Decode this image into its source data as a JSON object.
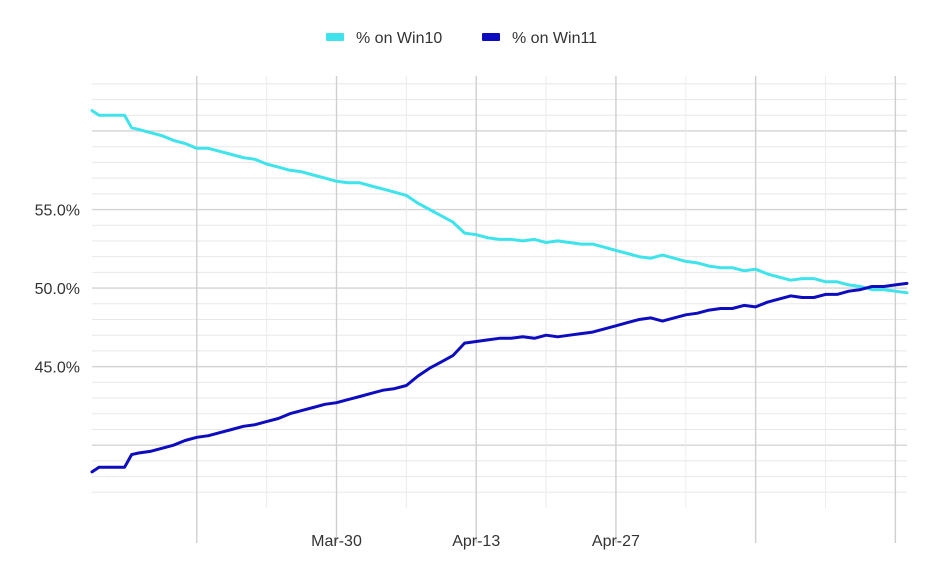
{
  "chart_data": {
    "type": "line",
    "title": "",
    "xlabel": "",
    "ylabel": "",
    "x_ticks": [
      "Mar-30",
      "Apr-13",
      "Apr-27"
    ],
    "y_ticks": [
      "45.0%",
      "50.0%",
      "55.0%"
    ],
    "ylim": [
      36.0,
      63.5
    ],
    "grid": true,
    "legend_position": "top",
    "series": [
      {
        "name": "% on Win10",
        "color": "#3ee3ec",
        "points": [
          [
            0,
            61.3
          ],
          [
            0.6,
            61.0
          ],
          [
            1.2,
            61.0
          ],
          [
            2.0,
            61.0
          ],
          [
            2.8,
            61.0
          ],
          [
            3.4,
            60.2
          ],
          [
            4.0,
            60.1
          ],
          [
            5.0,
            59.9
          ],
          [
            6.0,
            59.7
          ],
          [
            7.0,
            59.4
          ],
          [
            8.0,
            59.2
          ],
          [
            9.0,
            58.9
          ],
          [
            10.0,
            58.9
          ],
          [
            11.0,
            58.7
          ],
          [
            12.0,
            58.5
          ],
          [
            13.0,
            58.3
          ],
          [
            14.0,
            58.2
          ],
          [
            15.0,
            57.9
          ],
          [
            16.0,
            57.7
          ],
          [
            17.0,
            57.5
          ],
          [
            18.0,
            57.4
          ],
          [
            19.0,
            57.2
          ],
          [
            20.0,
            57.0
          ],
          [
            21.0,
            56.8
          ],
          [
            22.0,
            56.7
          ],
          [
            23.0,
            56.7
          ],
          [
            24.0,
            56.5
          ],
          [
            25.0,
            56.3
          ],
          [
            26.0,
            56.1
          ],
          [
            27.0,
            55.9
          ],
          [
            28.0,
            55.4
          ],
          [
            29.0,
            55.0
          ],
          [
            30.0,
            54.6
          ],
          [
            31.0,
            54.2
          ],
          [
            32.0,
            53.5
          ],
          [
            33.0,
            53.4
          ],
          [
            34.0,
            53.2
          ],
          [
            35.0,
            53.1
          ],
          [
            36.0,
            53.1
          ],
          [
            37.0,
            53.0
          ],
          [
            38.0,
            53.1
          ],
          [
            39.0,
            52.9
          ],
          [
            40.0,
            53.0
          ],
          [
            41.0,
            52.9
          ],
          [
            42.0,
            52.8
          ],
          [
            43.0,
            52.8
          ],
          [
            44.0,
            52.6
          ],
          [
            45.0,
            52.4
          ],
          [
            46.0,
            52.2
          ],
          [
            47.0,
            52.0
          ],
          [
            48.0,
            51.9
          ],
          [
            49.0,
            52.1
          ],
          [
            50.0,
            51.9
          ],
          [
            51.0,
            51.7
          ],
          [
            52.0,
            51.6
          ],
          [
            53.0,
            51.4
          ],
          [
            54.0,
            51.3
          ],
          [
            55.0,
            51.3
          ],
          [
            56.0,
            51.1
          ],
          [
            57.0,
            51.2
          ],
          [
            58.0,
            50.9
          ],
          [
            59.0,
            50.7
          ],
          [
            60.0,
            50.5
          ],
          [
            61.0,
            50.6
          ],
          [
            62.0,
            50.6
          ],
          [
            63.0,
            50.4
          ],
          [
            64.0,
            50.4
          ],
          [
            65.0,
            50.2
          ],
          [
            66.0,
            50.1
          ],
          [
            67.0,
            49.9
          ],
          [
            68.0,
            49.9
          ],
          [
            69.0,
            49.8
          ],
          [
            70.0,
            49.7
          ]
        ]
      },
      {
        "name": "% on Win11",
        "color": "#0d0dbf",
        "points": [
          [
            0,
            38.3
          ],
          [
            0.6,
            38.6
          ],
          [
            1.2,
            38.6
          ],
          [
            2.0,
            38.6
          ],
          [
            2.8,
            38.6
          ],
          [
            3.4,
            39.4
          ],
          [
            4.0,
            39.5
          ],
          [
            5.0,
            39.6
          ],
          [
            6.0,
            39.8
          ],
          [
            7.0,
            40.0
          ],
          [
            8.0,
            40.3
          ],
          [
            9.0,
            40.5
          ],
          [
            10.0,
            40.6
          ],
          [
            11.0,
            40.8
          ],
          [
            12.0,
            41.0
          ],
          [
            13.0,
            41.2
          ],
          [
            14.0,
            41.3
          ],
          [
            15.0,
            41.5
          ],
          [
            16.0,
            41.7
          ],
          [
            17.0,
            42.0
          ],
          [
            18.0,
            42.2
          ],
          [
            19.0,
            42.4
          ],
          [
            20.0,
            42.6
          ],
          [
            21.0,
            42.7
          ],
          [
            22.0,
            42.9
          ],
          [
            23.0,
            43.1
          ],
          [
            24.0,
            43.3
          ],
          [
            25.0,
            43.5
          ],
          [
            26.0,
            43.6
          ],
          [
            27.0,
            43.8
          ],
          [
            28.0,
            44.4
          ],
          [
            29.0,
            44.9
          ],
          [
            30.0,
            45.3
          ],
          [
            31.0,
            45.7
          ],
          [
            32.0,
            46.5
          ],
          [
            33.0,
            46.6
          ],
          [
            34.0,
            46.7
          ],
          [
            35.0,
            46.8
          ],
          [
            36.0,
            46.8
          ],
          [
            37.0,
            46.9
          ],
          [
            38.0,
            46.8
          ],
          [
            39.0,
            47.0
          ],
          [
            40.0,
            46.9
          ],
          [
            41.0,
            47.0
          ],
          [
            42.0,
            47.1
          ],
          [
            43.0,
            47.2
          ],
          [
            44.0,
            47.4
          ],
          [
            45.0,
            47.6
          ],
          [
            46.0,
            47.8
          ],
          [
            47.0,
            48.0
          ],
          [
            48.0,
            48.1
          ],
          [
            49.0,
            47.9
          ],
          [
            50.0,
            48.1
          ],
          [
            51.0,
            48.3
          ],
          [
            52.0,
            48.4
          ],
          [
            53.0,
            48.6
          ],
          [
            54.0,
            48.7
          ],
          [
            55.0,
            48.7
          ],
          [
            56.0,
            48.9
          ],
          [
            57.0,
            48.8
          ],
          [
            58.0,
            49.1
          ],
          [
            59.0,
            49.3
          ],
          [
            60.0,
            49.5
          ],
          [
            61.0,
            49.4
          ],
          [
            62.0,
            49.4
          ],
          [
            63.0,
            49.6
          ],
          [
            64.0,
            49.6
          ],
          [
            65.0,
            49.8
          ],
          [
            66.0,
            49.9
          ],
          [
            67.0,
            50.1
          ],
          [
            68.0,
            50.1
          ],
          [
            69.0,
            50.2
          ],
          [
            70.0,
            50.3
          ]
        ]
      }
    ]
  }
}
